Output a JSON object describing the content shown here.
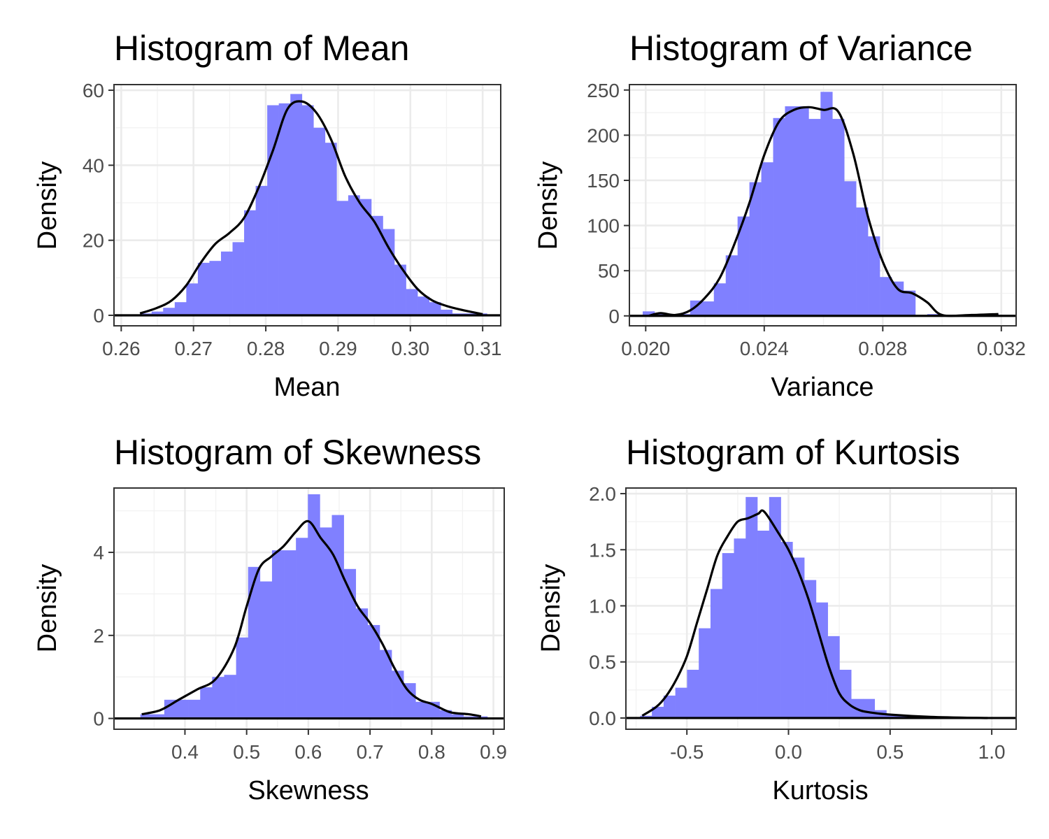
{
  "chart_data": [
    {
      "type": "bar",
      "title": "Histogram of Mean",
      "xlabel": "Mean",
      "ylabel": "Density",
      "xlim": [
        0.259,
        0.3125
      ],
      "ylim": [
        -2.8,
        61.5
      ],
      "xticks": [
        0.26,
        0.27,
        0.28,
        0.29,
        0.3,
        0.31
      ],
      "xtick_labels": [
        "0.26",
        "0.27",
        "0.28",
        "0.29",
        "0.30",
        "0.31"
      ],
      "yticks": [
        0,
        20,
        40,
        60
      ],
      "ytick_labels": [
        "0",
        "20",
        "40",
        "60"
      ],
      "grid": true,
      "bar_color": "#8080ff",
      "density_color": "#000000",
      "bin_start": 0.2626,
      "bin_width": 0.0016,
      "values": [
        0.5,
        1.0,
        2.0,
        3.5,
        8.5,
        14.0,
        14.5,
        17.0,
        19.5,
        28.0,
        34.5,
        56.0,
        56.5,
        59.0,
        56.0,
        50.0,
        46.0,
        30.5,
        32.0,
        31.0,
        26.5,
        23.0,
        13.5,
        7.0,
        5.0,
        3.5,
        1.5,
        0.5,
        0.5,
        0.5
      ],
      "density_x": [
        0.2626,
        0.265,
        0.267,
        0.269,
        0.271,
        0.273,
        0.275,
        0.277,
        0.279,
        0.281,
        0.283,
        0.285,
        0.287,
        0.289,
        0.291,
        0.293,
        0.295,
        0.297,
        0.299,
        0.301,
        0.303,
        0.305,
        0.307,
        0.31
      ],
      "density_y": [
        0.5,
        2.0,
        4.0,
        8.0,
        14.0,
        19.0,
        22.0,
        26.0,
        34.0,
        44.0,
        55.0,
        57.0,
        54.0,
        47.0,
        37.0,
        30.0,
        25.0,
        18.0,
        12.0,
        7.0,
        4.0,
        2.5,
        1.5,
        0.3
      ]
    },
    {
      "type": "bar",
      "title": "Histogram of Variance",
      "xlabel": "Variance",
      "ylabel": "Density",
      "xlim": [
        0.01945,
        0.0325
      ],
      "ylim": [
        -11,
        256
      ],
      "xticks": [
        0.02,
        0.024,
        0.028,
        0.032
      ],
      "xtick_labels": [
        "0.020",
        "0.024",
        "0.028",
        "0.032"
      ],
      "yticks": [
        0,
        50,
        100,
        150,
        200,
        250
      ],
      "ytick_labels": [
        "0",
        "50",
        "100",
        "150",
        "200",
        "250"
      ],
      "grid": true,
      "bar_color": "#8080ff",
      "density_color": "#000000",
      "bin_start": 0.0199,
      "bin_width": 0.0004,
      "values": [
        5,
        2,
        2,
        2,
        17,
        16,
        36,
        67,
        110,
        148,
        170,
        219,
        232,
        232,
        218,
        248,
        218,
        149,
        120,
        88,
        43,
        38,
        28,
        0,
        2,
        0,
        0,
        0,
        2,
        2
      ],
      "density_x": [
        0.0201,
        0.0205,
        0.021,
        0.0215,
        0.022,
        0.0225,
        0.023,
        0.0235,
        0.024,
        0.0245,
        0.025,
        0.0255,
        0.026,
        0.0265,
        0.027,
        0.0275,
        0.028,
        0.0285,
        0.029,
        0.0295,
        0.03,
        0.031,
        0.0319
      ],
      "density_y": [
        0,
        3,
        1,
        6,
        20,
        42,
        80,
        125,
        178,
        215,
        228,
        231,
        228,
        226,
        180,
        110,
        60,
        30,
        25,
        15,
        1,
        1,
        2
      ]
    },
    {
      "type": "bar",
      "title": "Histogram of Skewness",
      "xlabel": "Skewness",
      "ylabel": "Density",
      "xlim": [
        0.285,
        0.9175
      ],
      "ylim": [
        -0.26,
        5.55
      ],
      "xticks": [
        0.4,
        0.5,
        0.6,
        0.7,
        0.8,
        0.9
      ],
      "xtick_labels": [
        "0.4",
        "0.5",
        "0.6",
        "0.7",
        "0.8",
        "0.9"
      ],
      "grid": true,
      "yticks": [
        0,
        2,
        4
      ],
      "ytick_labels": [
        "0",
        "2",
        "4"
      ],
      "bar_color": "#8080ff",
      "density_color": "#000000",
      "bin_start": 0.3277,
      "bin_width": 0.0194,
      "values": [
        0.1,
        0.1,
        0.45,
        0.45,
        0.45,
        0.75,
        1.0,
        1.05,
        1.95,
        3.65,
        3.3,
        4.05,
        4.05,
        4.35,
        5.4,
        4.6,
        4.9,
        3.6,
        2.65,
        2.25,
        1.65,
        1.15,
        0.85,
        0.4,
        0.4,
        0.2,
        0.1,
        0.05,
        0.05,
        0.0
      ],
      "density_x": [
        0.33,
        0.36,
        0.39,
        0.42,
        0.45,
        0.48,
        0.5,
        0.52,
        0.54,
        0.56,
        0.58,
        0.6,
        0.62,
        0.64,
        0.66,
        0.68,
        0.7,
        0.72,
        0.74,
        0.76,
        0.78,
        0.8,
        0.83,
        0.86,
        0.88
      ],
      "density_y": [
        0.1,
        0.2,
        0.45,
        0.7,
        0.95,
        1.7,
        2.7,
        3.6,
        3.9,
        4.15,
        4.5,
        4.75,
        4.35,
        3.95,
        3.3,
        2.7,
        2.3,
        1.8,
        1.2,
        0.7,
        0.45,
        0.35,
        0.15,
        0.1,
        0.05
      ]
    },
    {
      "type": "bar",
      "title": "Histogram of Kurtosis",
      "xlabel": "Kurtosis",
      "ylabel": "Density",
      "xlim": [
        -0.8,
        1.12
      ],
      "ylim": [
        -0.1,
        2.05
      ],
      "xticks": [
        -0.5,
        0.0,
        0.5,
        1.0
      ],
      "xtick_labels": [
        "-0.5",
        "0.0",
        "0.5",
        "1.0"
      ],
      "yticks": [
        0.0,
        0.5,
        1.0,
        1.5,
        2.0
      ],
      "ytick_labels": [
        "0.0",
        "0.5",
        "1.0",
        "1.5",
        "2.0"
      ],
      "grid": true,
      "bar_color": "#8080ff",
      "density_color": "#000000",
      "bin_start": -0.73,
      "bin_width": 0.0577,
      "values": [
        0.02,
        0.1,
        0.2,
        0.27,
        0.43,
        0.8,
        1.15,
        1.47,
        1.6,
        1.97,
        1.67,
        1.97,
        1.57,
        1.43,
        1.23,
        1.03,
        0.73,
        0.43,
        0.17,
        0.17,
        0.07,
        0.03,
        0.02,
        0.01,
        0.01,
        0.0,
        0.0,
        0.0,
        0.0,
        0.0
      ],
      "density_x": [
        -0.72,
        -0.65,
        -0.6,
        -0.55,
        -0.5,
        -0.45,
        -0.4,
        -0.35,
        -0.3,
        -0.25,
        -0.2,
        -0.15,
        -0.12,
        -0.05,
        0.0,
        0.05,
        0.1,
        0.15,
        0.2,
        0.25,
        0.3,
        0.35,
        0.4,
        0.5,
        0.7,
        0.98
      ],
      "density_y": [
        0.02,
        0.1,
        0.2,
        0.35,
        0.55,
        0.85,
        1.15,
        1.45,
        1.62,
        1.75,
        1.78,
        1.82,
        1.84,
        1.65,
        1.5,
        1.3,
        1.05,
        0.75,
        0.45,
        0.22,
        0.12,
        0.07,
        0.05,
        0.03,
        0.01,
        0.0
      ]
    }
  ]
}
